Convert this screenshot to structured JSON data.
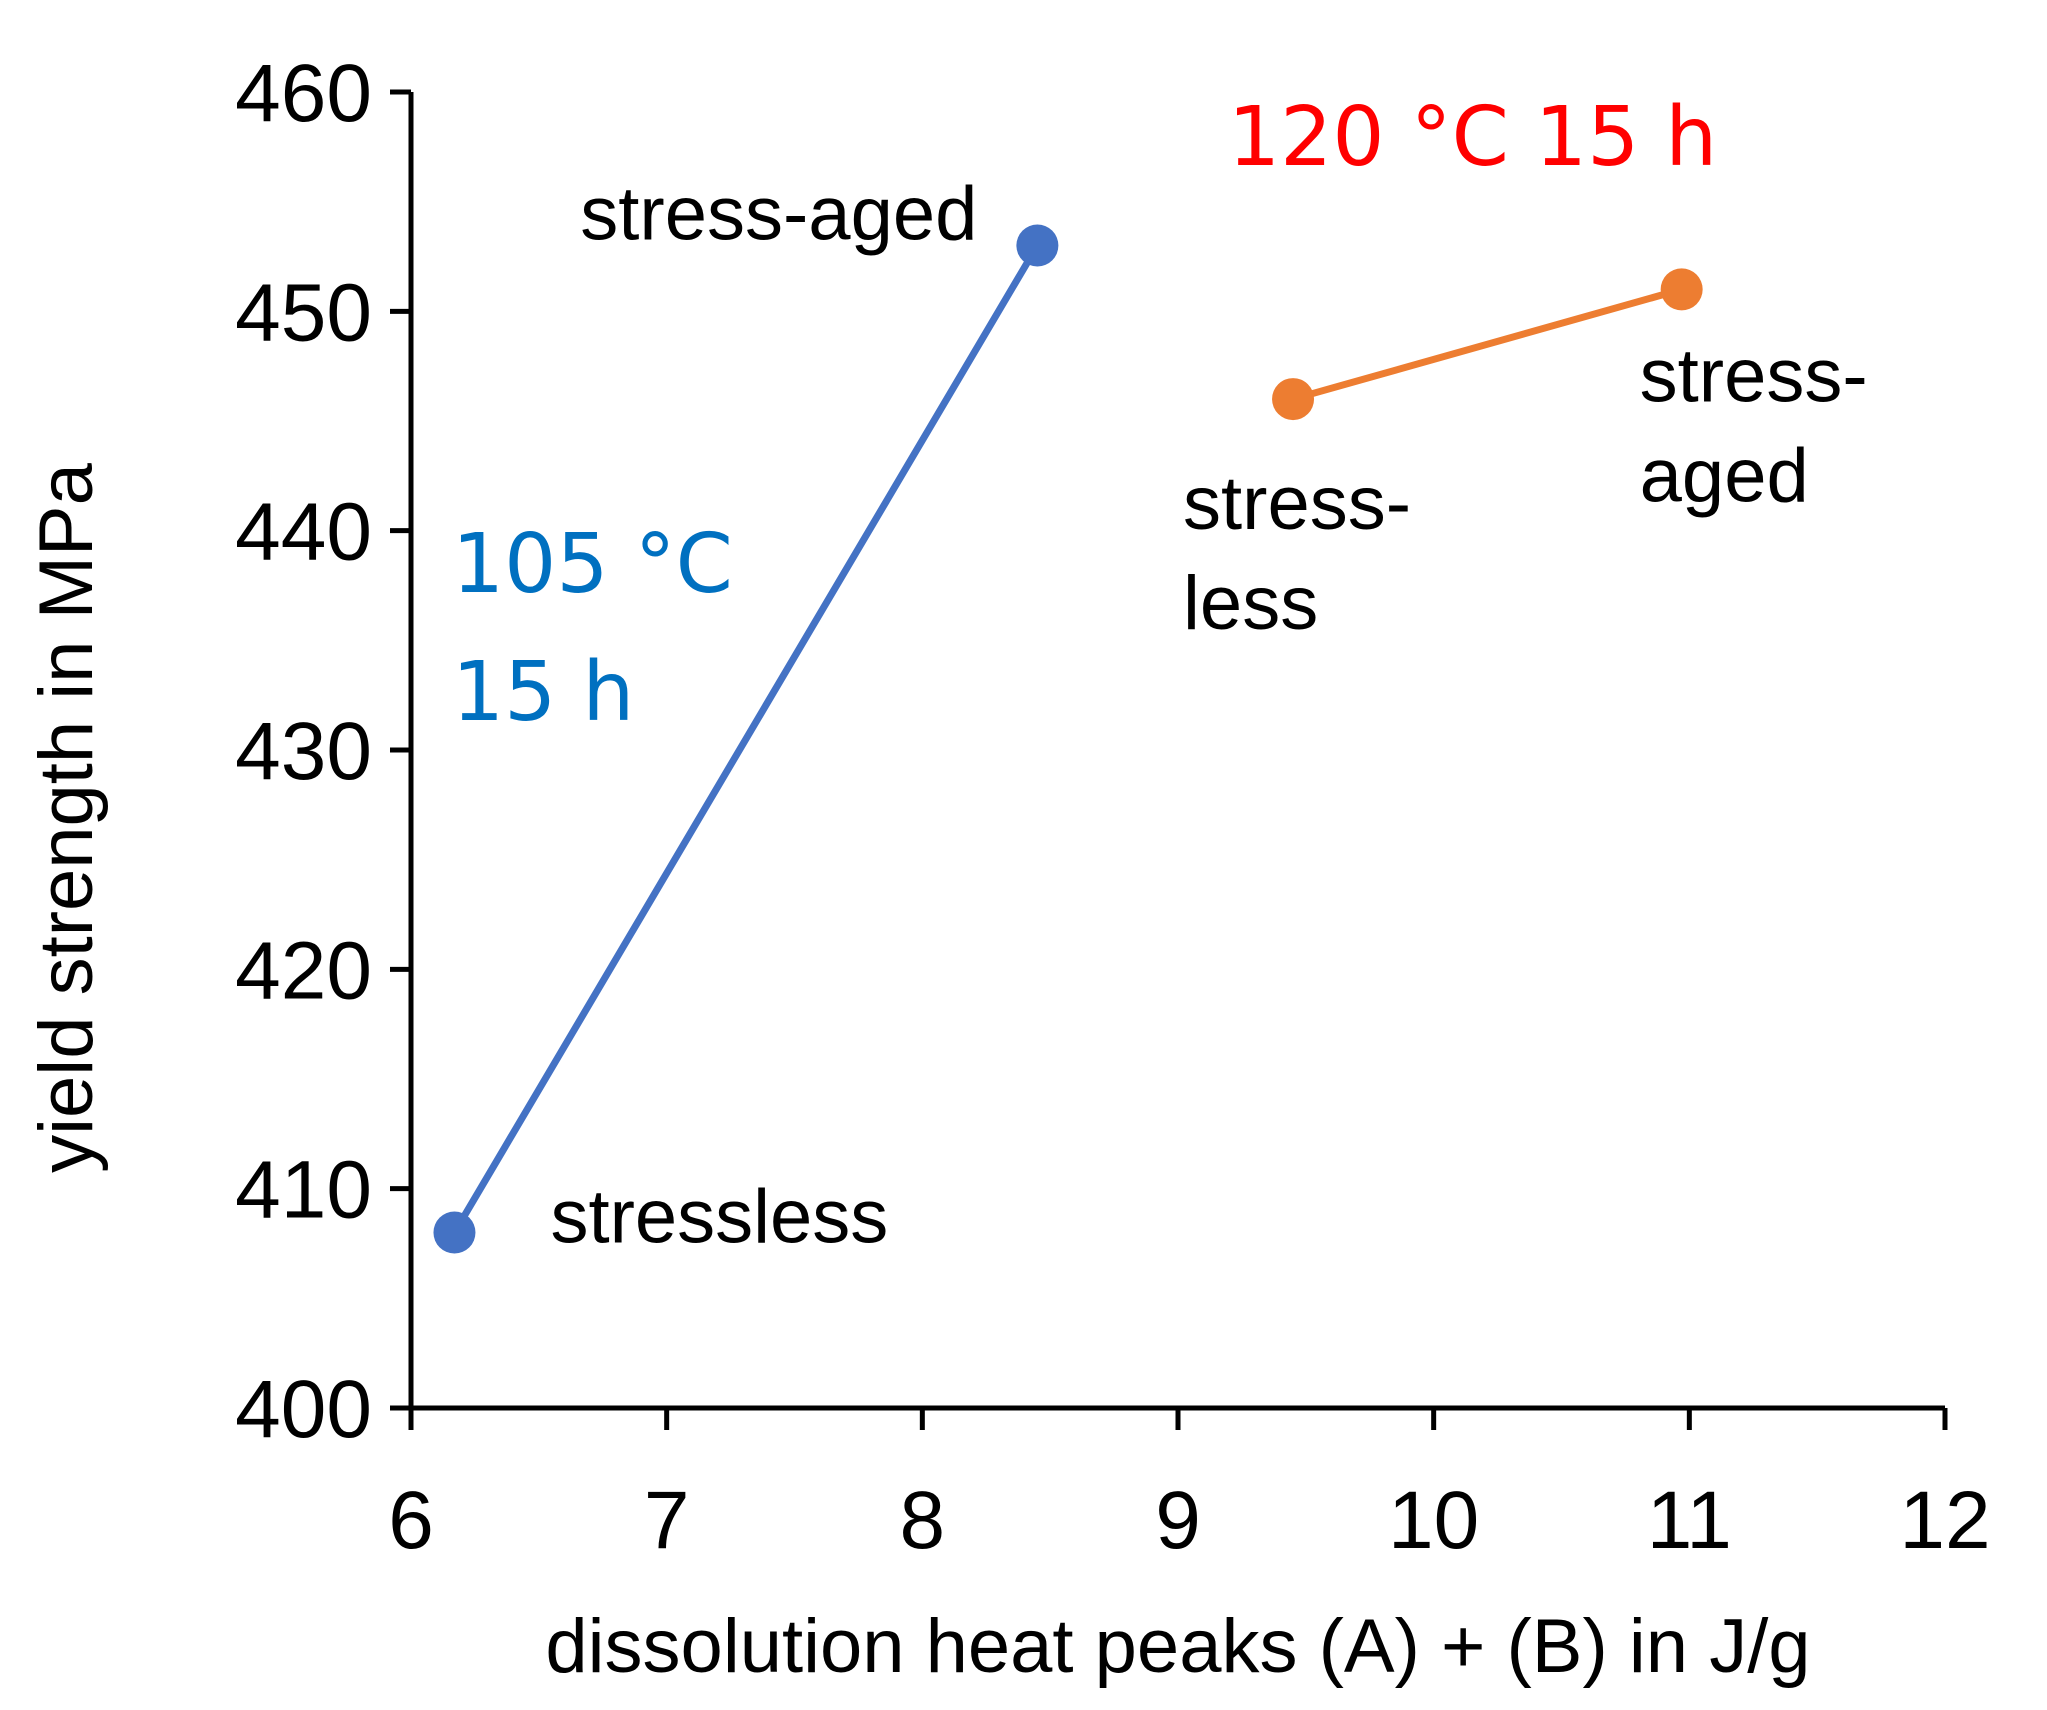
{
  "chart_data": {
    "type": "line",
    "title": "",
    "xlabel": "dissolution heat peaks (A) + (B) in J/g",
    "ylabel": "yield strength in MPa",
    "xlim": [
      6,
      12
    ],
    "ylim": [
      400,
      460
    ],
    "x_ticks": [
      "6",
      "7",
      "8",
      "9",
      "10",
      "11",
      "12"
    ],
    "y_ticks": [
      "400",
      "410",
      "420",
      "430",
      "440",
      "450",
      "460"
    ],
    "grid": false,
    "series": [
      {
        "name": "105 °C 15 h",
        "label_lines": [
          "105 °C",
          "15 h"
        ],
        "color": "#4472C4",
        "label_color": "#0070C0",
        "points": [
          {
            "x": 6.17,
            "y": 408,
            "label": [
              "stressless"
            ]
          },
          {
            "x": 8.45,
            "y": 453,
            "label": [
              "stress-aged"
            ]
          }
        ]
      },
      {
        "name": "120 °C 15 h",
        "label_lines": [
          "120 °C 15 h"
        ],
        "color": "#ED7D31",
        "label_color": "#FF0000",
        "points": [
          {
            "x": 9.45,
            "y": 446,
            "label": [
              "stress-",
              "less"
            ]
          },
          {
            "x": 10.97,
            "y": 451,
            "label": [
              "stress-",
              "aged"
            ]
          }
        ]
      }
    ]
  }
}
